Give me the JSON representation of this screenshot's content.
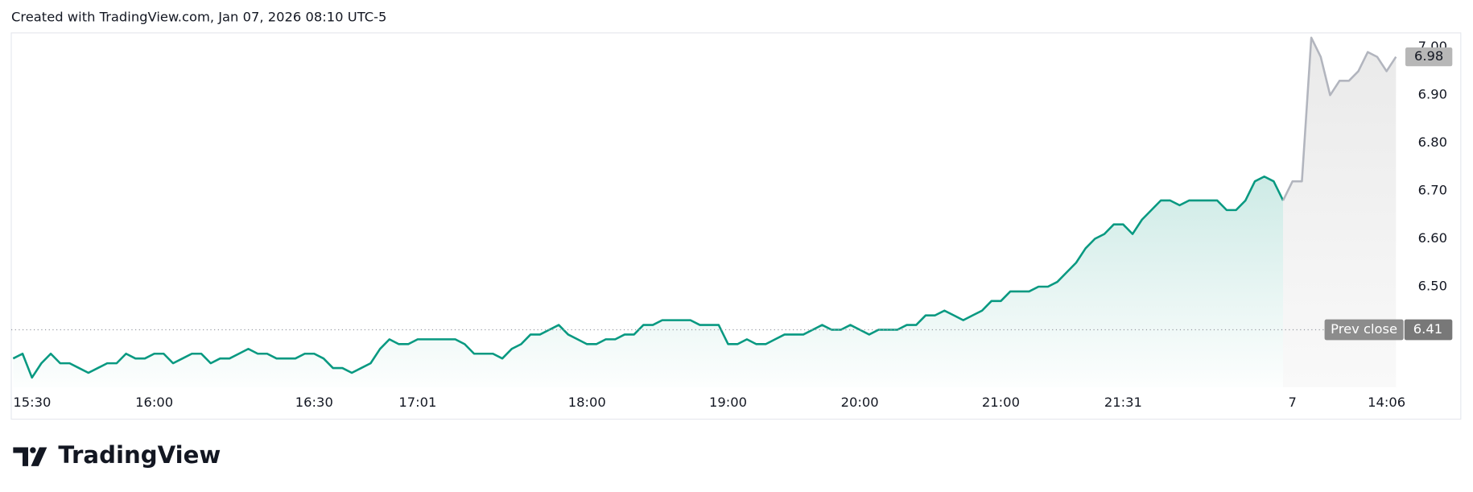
{
  "chart_data": {
    "type": "line",
    "title": "Created with TradingView.com, Jan 07, 2026 08:10 UTC-5",
    "brand": "TradingView",
    "categories": [
      "15:30",
      null,
      null,
      null,
      null,
      null,
      null,
      null,
      null,
      null,
      null,
      null,
      null,
      null,
      null,
      "16:00",
      null,
      null,
      null,
      null,
      null,
      null,
      null,
      null,
      null,
      null,
      null,
      null,
      null,
      null,
      null,
      null,
      "16:30",
      null,
      null,
      null,
      null,
      null,
      null,
      null,
      null,
      null,
      null,
      "17:01",
      null,
      null,
      null,
      null,
      null,
      null,
      null,
      null,
      null,
      null,
      null,
      null,
      null,
      null,
      null,
      null,
      null,
      "18:00",
      null,
      null,
      null,
      null,
      null,
      null,
      null,
      null,
      null,
      null,
      null,
      null,
      null,
      null,
      "19:00",
      null,
      null,
      null,
      null,
      null,
      null,
      null,
      null,
      null,
      null,
      null,
      null,
      null,
      "20:00",
      null,
      null,
      null,
      null,
      null,
      null,
      null,
      null,
      null,
      null,
      null,
      null,
      null,
      null,
      "21:00",
      null,
      null,
      null,
      null,
      null,
      null,
      null,
      null,
      null,
      null,
      null,
      null,
      "21:31",
      null,
      null,
      null,
      null,
      null,
      null,
      null,
      null,
      null,
      null,
      null,
      null,
      null,
      null,
      null,
      null,
      null,
      "7",
      null,
      null,
      null,
      null,
      null,
      null,
      null,
      null,
      null,
      "14:06",
      null
    ],
    "series": [
      {
        "color": "#089981",
        "fill": "area",
        "values": [
          6.35,
          6.36,
          6.31,
          6.34,
          6.36,
          6.34,
          6.34,
          6.33,
          6.32,
          6.33,
          6.34,
          6.34,
          6.36,
          6.35,
          6.35,
          6.36,
          6.36,
          6.34,
          6.35,
          6.36,
          6.36,
          6.34,
          6.35,
          6.35,
          6.36,
          6.37,
          6.36,
          6.36,
          6.35,
          6.35,
          6.35,
          6.36,
          6.36,
          6.35,
          6.33,
          6.33,
          6.32,
          6.33,
          6.34,
          6.37,
          6.39,
          6.38,
          6.38,
          6.39,
          6.39,
          6.39,
          6.39,
          6.39,
          6.38,
          6.36,
          6.36,
          6.36,
          6.35,
          6.37,
          6.38,
          6.4,
          6.4,
          6.41,
          6.42,
          6.4,
          6.39,
          6.38,
          6.38,
          6.39,
          6.39,
          6.4,
          6.4,
          6.42,
          6.42,
          6.43,
          6.43,
          6.43,
          6.43,
          6.42,
          6.42,
          6.42,
          6.38,
          6.38,
          6.39,
          6.38,
          6.38,
          6.39,
          6.4,
          6.4,
          6.4,
          6.41,
          6.42,
          6.41,
          6.41,
          6.42,
          6.41,
          6.4,
          6.41,
          6.41,
          6.41,
          6.42,
          6.42,
          6.44,
          6.44,
          6.45,
          6.44,
          6.43,
          6.44,
          6.45,
          6.47,
          6.47,
          6.49,
          6.49,
          6.49,
          6.5,
          6.5,
          6.51,
          6.53,
          6.55,
          6.58,
          6.6,
          6.61,
          6.63,
          6.63,
          6.61,
          6.64,
          6.66,
          6.68,
          6.68,
          6.67,
          6.68,
          6.68,
          6.68,
          6.68,
          6.66,
          6.66,
          6.68,
          6.72,
          6.73,
          6.72,
          6.68,
          null,
          null,
          null,
          null,
          null,
          null,
          null,
          null,
          null,
          null,
          null,
          null
        ]
      },
      {
        "color": "#b2b5be",
        "fill": "area",
        "values": [
          null,
          null,
          null,
          null,
          null,
          null,
          null,
          null,
          null,
          null,
          null,
          null,
          null,
          null,
          null,
          null,
          null,
          null,
          null,
          null,
          null,
          null,
          null,
          null,
          null,
          null,
          null,
          null,
          null,
          null,
          null,
          null,
          null,
          null,
          null,
          null,
          null,
          null,
          null,
          null,
          null,
          null,
          null,
          null,
          null,
          null,
          null,
          null,
          null,
          null,
          null,
          null,
          null,
          null,
          null,
          null,
          null,
          null,
          null,
          null,
          null,
          null,
          null,
          null,
          null,
          null,
          null,
          null,
          null,
          null,
          null,
          null,
          null,
          null,
          null,
          null,
          null,
          null,
          null,
          null,
          null,
          null,
          null,
          null,
          null,
          null,
          null,
          null,
          null,
          null,
          null,
          null,
          null,
          null,
          null,
          null,
          null,
          null,
          null,
          null,
          null,
          null,
          null,
          null,
          null,
          null,
          null,
          null,
          null,
          null,
          null,
          null,
          null,
          null,
          null,
          null,
          null,
          null,
          null,
          null,
          null,
          null,
          null,
          null,
          null,
          null,
          null,
          null,
          null,
          null,
          null,
          null,
          null,
          null,
          null,
          6.68,
          6.72,
          6.72,
          7.02,
          6.98,
          6.9,
          6.93,
          6.93,
          6.95,
          6.99,
          6.98,
          6.95,
          6.98
        ]
      }
    ],
    "ylim": [
      6.29,
      7.03
    ],
    "yticks": [
      {
        "value": 6.5,
        "label": "6.50"
      },
      {
        "value": 6.6,
        "label": "6.60"
      },
      {
        "value": 6.7,
        "label": "6.70"
      },
      {
        "value": 6.8,
        "label": "6.80"
      },
      {
        "value": 6.9,
        "label": "6.90"
      },
      {
        "value": 7.0,
        "label": "7.00"
      }
    ],
    "grid": false,
    "reference_line": {
      "label": "Prev close",
      "value": 6.41
    },
    "last_value_label": true
  }
}
